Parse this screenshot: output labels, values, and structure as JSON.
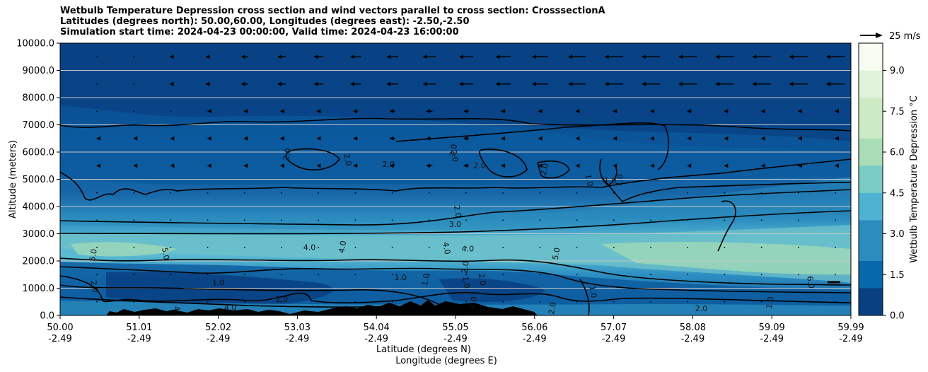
{
  "chart_data": {
    "type": "heatmap",
    "subtype": "filled-contour cross section with contour lines and wind vectors",
    "title_lines": [
      "Wetbulb Temperature Depression cross section and wind vectors parallel to cross section: CrosssectionA",
      "Latitudes (degrees north): 50.00,60.00, Longitudes (degrees east): -2.50,-2.50",
      "Simulation start time: 2024-04-23 00:00:00, Valid time: 2024-04-23 16:00:00"
    ],
    "ylabel": "Altitude (meters)",
    "xlabel_lines": [
      "Latitude (degrees N)",
      "Longitude (degrees E)"
    ],
    "ylim": [
      0,
      10000
    ],
    "xlim": [
      50.0,
      59.99
    ],
    "y_ticks": [
      "0.0",
      "1000.0",
      "2000.0",
      "3000.0",
      "4000.0",
      "5000.0",
      "6000.0",
      "7000.0",
      "8000.0",
      "9000.0",
      "10000.0"
    ],
    "x_ticks_lat": [
      "50.00",
      "51.01",
      "52.02",
      "53.03",
      "54.04",
      "55.05",
      "56.06",
      "57.07",
      "58.08",
      "59.09",
      "59.99"
    ],
    "x_ticks_lon": [
      "-2.49",
      "-2.49",
      "-2.49",
      "-2.49",
      "-2.49",
      "-2.49",
      "-2.49",
      "-2.49",
      "-2.49",
      "-2.49",
      "-2.49"
    ],
    "grid": "horizontal",
    "colorbar": {
      "label": "Wetbulb Temperature Depression °C",
      "range": [
        0,
        10
      ],
      "tick_labels": [
        "0.0",
        "1.5",
        "3.0",
        "4.5",
        "6.0",
        "7.5",
        "9.0"
      ],
      "tick_values": [
        0,
        1.5,
        3.0,
        4.5,
        6.0,
        7.5,
        9.0
      ],
      "colormap": "GnBu_r",
      "colors": [
        "#084081",
        "#0868ac",
        "#2b8cbe",
        "#4eb3d3",
        "#7bccc4",
        "#a8ddb5",
        "#ccebc5",
        "#e0f3db",
        "#f7fcf0"
      ]
    },
    "wind_key_label": "25 m/s",
    "contour_labels": [
      {
        "text": "2.0",
        "lat": 52.9,
        "alt": 5900
      },
      {
        "text": "2.0",
        "lat": 53.6,
        "alt": 5700
      },
      {
        "text": "2.0",
        "lat": 54.15,
        "alt": 5450
      },
      {
        "text": "2.0",
        "lat": 55.0,
        "alt": 6050
      },
      {
        "text": "2.0",
        "lat": 54.95,
        "alt": 5850
      },
      {
        "text": "2.0",
        "lat": 55.3,
        "alt": 5400
      },
      {
        "text": "2.0",
        "lat": 56.15,
        "alt": 5350
      },
      {
        "text": "1.0",
        "lat": 56.65,
        "alt": 4950
      },
      {
        "text": "1.0",
        "lat": 56.95,
        "alt": 4850
      },
      {
        "text": "1.0",
        "lat": 57.1,
        "alt": 4950
      },
      {
        "text": "2.0",
        "lat": 54.99,
        "alt": 3800
      },
      {
        "text": "3.0",
        "lat": 54.99,
        "alt": 3250
      },
      {
        "text": "5.0",
        "lat": 50.45,
        "alt": 2200
      },
      {
        "text": "5.0",
        "lat": 51.3,
        "alt": 2250
      },
      {
        "text": "4.0",
        "lat": 53.15,
        "alt": 2400
      },
      {
        "text": "4.0",
        "lat": 53.6,
        "alt": 2500
      },
      {
        "text": "4.0",
        "lat": 54.85,
        "alt": 2450
      },
      {
        "text": "4.0",
        "lat": 55.15,
        "alt": 2350
      },
      {
        "text": "5.0",
        "lat": 56.3,
        "alt": 2250
      },
      {
        "text": "2.0",
        "lat": 50.4,
        "alt": 1050
      },
      {
        "text": "1.0",
        "lat": 52.0,
        "alt": 1100
      },
      {
        "text": "2.0",
        "lat": 55.15,
        "alt": 1750
      },
      {
        "text": "2.0",
        "lat": 55.3,
        "alt": 1300
      },
      {
        "text": "1.0",
        "lat": 54.3,
        "alt": 1300
      },
      {
        "text": "1.0",
        "lat": 54.65,
        "alt": 1300
      },
      {
        "text": "1.0",
        "lat": 55.1,
        "alt": 1200
      },
      {
        "text": "2.0",
        "lat": 52.8,
        "alt": 500
      },
      {
        "text": "4.0",
        "lat": 55.25,
        "alt": 450
      },
      {
        "text": "4.0",
        "lat": 51.45,
        "alt": 100
      },
      {
        "text": "4.0",
        "lat": 52.15,
        "alt": 200
      },
      {
        "text": "2.0",
        "lat": 56.25,
        "alt": 250
      },
      {
        "text": "1.0",
        "lat": 56.7,
        "alt": 850
      },
      {
        "text": "2.0",
        "lat": 58.1,
        "alt": 150
      },
      {
        "text": "1.0",
        "lat": 59.0,
        "alt": 450
      },
      {
        "text": "6.0",
        "lat": 59.45,
        "alt": 1200
      }
    ]
  }
}
